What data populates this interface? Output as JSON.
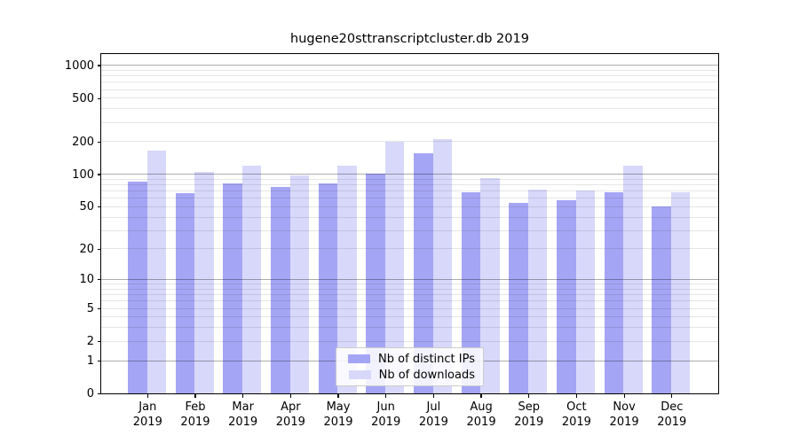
{
  "title": "hugene20sttranscriptcluster.db 2019",
  "colors": {
    "distinct_ips_bar": "#a5a5f5",
    "downloads_bar": "#d8d8fa",
    "grid_major": "rgba(0,0,0,0.32)",
    "grid_minor": "rgba(0,0,0,0.10)",
    "axis": "#000000",
    "legend_border": "#cccccc"
  },
  "legend": {
    "items": [
      {
        "label": "Nb of distinct IPs",
        "color_key": "distinct_ips_bar"
      },
      {
        "label": "Nb of downloads",
        "color_key": "downloads_bar"
      }
    ]
  },
  "y_axis": {
    "ticks": [
      0,
      1,
      2,
      5,
      10,
      20,
      50,
      100,
      200,
      500,
      1000
    ]
  },
  "x_axis": {
    "year": "2019",
    "months": [
      "Jan",
      "Feb",
      "Mar",
      "Apr",
      "May",
      "Jun",
      "Jul",
      "Aug",
      "Sep",
      "Oct",
      "Nov",
      "Dec"
    ]
  },
  "chart_data": {
    "type": "bar",
    "title": "hugene20sttranscriptcluster.db 2019",
    "categories": [
      "Jan 2019",
      "Feb 2019",
      "Mar 2019",
      "Apr 2019",
      "May 2019",
      "Jun 2019",
      "Jul 2019",
      "Aug 2019",
      "Sep 2019",
      "Oct 2019",
      "Nov 2019",
      "Dec 2019"
    ],
    "series": [
      {
        "name": "Nb of distinct IPs",
        "values": [
          85,
          66,
          81,
          76,
          81,
          100,
          154,
          68,
          54,
          57,
          67,
          50
        ]
      },
      {
        "name": "Nb of downloads",
        "values": [
          165,
          105,
          119,
          97,
          120,
          196,
          210,
          91,
          72,
          70,
          120,
          68
        ]
      }
    ],
    "yscale": "log1p",
    "y_ticks": [
      0,
      1,
      2,
      5,
      10,
      20,
      50,
      100,
      200,
      500,
      1000
    ],
    "ylim": [
      0,
      1280
    ],
    "grid": "on",
    "legend_position": "lower center"
  }
}
